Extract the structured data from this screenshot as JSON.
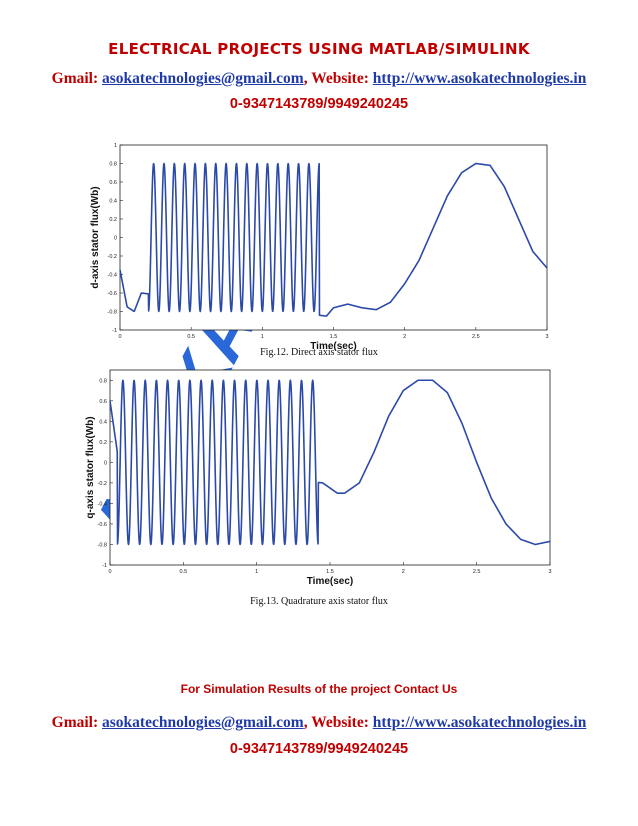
{
  "header": {
    "title": "Electrical Projects Using MATLAB/SIMULINK",
    "gmail_label": "Gmail: ",
    "email": "asokatechnologies@gmail.com",
    "website_label": ", Website: ",
    "website": "http://www.asokatechnologies.in",
    "phone": "0-9347143789/9949240245"
  },
  "watermark": {
    "text": "ASOKA",
    "color": "#1f5fd6"
  },
  "figures": [
    {
      "caption": "Fig.12. Direct axis stator flux"
    },
    {
      "caption": "Fig.13. Quadrature axis stator flux"
    }
  ],
  "footer": {
    "contact": "For Simulation Results of the project Contact Us",
    "gmail_label": "Gmail: ",
    "email": "asokatechnologies@gmail.com",
    "website_label": ", Website: ",
    "website": "http://www.asokatechnologies.in",
    "phone": "0-9347143789/9949240245"
  },
  "chart_data": [
    {
      "type": "line",
      "title": "",
      "xlabel": "Time(sec)",
      "ylabel": "d-axis stator flux(Wb)",
      "xlim": [
        0,
        3
      ],
      "ylim": [
        -1,
        1
      ],
      "xticks": [
        "0",
        "0.5",
        "1",
        "1.5",
        "2",
        "2.5",
        "3"
      ],
      "yticks": [
        "-1",
        "-0.8",
        "-0.6",
        "-0.4",
        "-0.2",
        "0",
        "0.2",
        "0.4",
        "0.6",
        "0.8",
        "1"
      ],
      "series_color": "#2b4aa8",
      "series": [
        {
          "segment": "fast oscillation",
          "t_range": [
            0.2,
            1.4
          ],
          "amplitude": 0.8,
          "cycles": 16.5
        },
        {
          "segment": "slow wave",
          "x": [
            0,
            0.05,
            0.1,
            0.15,
            1.45,
            1.5,
            1.6,
            1.7,
            1.8,
            1.9,
            2.0,
            2.1,
            2.2,
            2.3,
            2.4,
            2.5,
            2.6,
            2.7,
            2.8,
            2.9,
            3.0
          ],
          "y": [
            -0.35,
            -0.75,
            -0.8,
            -0.6,
            -0.85,
            -0.76,
            -0.72,
            -0.76,
            -0.78,
            -0.7,
            -0.5,
            -0.25,
            0.1,
            0.45,
            0.7,
            0.8,
            0.78,
            0.55,
            0.2,
            -0.15,
            -0.33
          ]
        }
      ]
    },
    {
      "type": "line",
      "title": "",
      "xlabel": "Time(sec)",
      "ylabel": "q-axis stator flux(Wb)",
      "xlim": [
        0,
        3
      ],
      "ylim": [
        -1,
        0.9
      ],
      "xticks": [
        "0",
        "0.5",
        "1",
        "1.5",
        "2",
        "2.5",
        "3"
      ],
      "yticks": [
        "-1",
        "-0.8",
        "-0.6",
        "-0.4",
        "-0.2",
        "0",
        "0.2",
        "0.4",
        "0.6",
        "0.8"
      ],
      "series_color": "#2b4aa8",
      "series": [
        {
          "segment": "fast oscillation",
          "t_range": [
            0.05,
            1.42
          ],
          "amplitude": 0.8,
          "cycles": 18
        },
        {
          "segment": "slow wave",
          "x": [
            0,
            0.03,
            0.06,
            1.45,
            1.5,
            1.55,
            1.6,
            1.7,
            1.8,
            1.9,
            2.0,
            2.1,
            2.2,
            2.3,
            2.4,
            2.5,
            2.6,
            2.7,
            2.8,
            2.9,
            3.0
          ],
          "y": [
            0.6,
            0.3,
            0.0,
            -0.2,
            -0.25,
            -0.3,
            -0.3,
            -0.2,
            0.1,
            0.45,
            0.7,
            0.8,
            0.8,
            0.68,
            0.38,
            0.0,
            -0.35,
            -0.6,
            -0.75,
            -0.8,
            -0.77
          ]
        }
      ]
    }
  ]
}
